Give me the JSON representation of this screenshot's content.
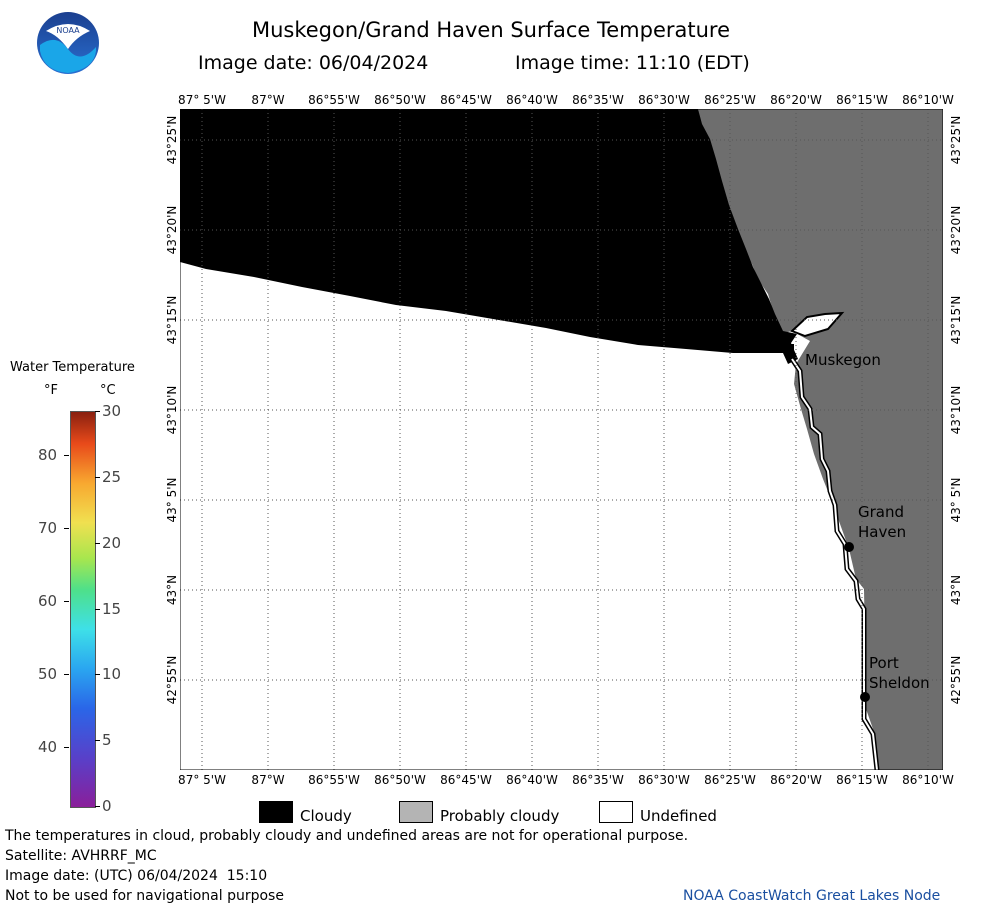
{
  "header": {
    "title": "Muskegon/Grand Haven Surface Temperature",
    "image_date_label": "Image date: 06/04/2024",
    "image_time_label": "Image time: 11:10 (EDT)"
  },
  "logo": {
    "text": "NOAA"
  },
  "map": {
    "lon_ticks": [
      "87° 5'W",
      "87°W",
      "86°55'W",
      "86°50'W",
      "86°45'W",
      "86°40'W",
      "86°35'W",
      "86°30'W",
      "86°25'W",
      "86°20'W",
      "86°15'W",
      "86°10'W"
    ],
    "lat_ticks": [
      "43°25'N",
      "43°20'N",
      "43°15'N",
      "43°10'N",
      "43° 5'N",
      "43°N",
      "42°55'N"
    ],
    "cities": [
      {
        "name": "Muskegon",
        "lines": [
          "Muskegon"
        ]
      },
      {
        "name": "Grand Haven",
        "lines": [
          "Grand",
          "Haven"
        ]
      },
      {
        "name": "Port Sheldon",
        "lines": [
          "Port",
          "Sheldon"
        ]
      }
    ],
    "colors": {
      "cloudy": "#000000",
      "probably_cloudy": "#6e6e6e",
      "undefined": "#ffffff",
      "grid": "#555555"
    }
  },
  "colorbar": {
    "title": "Water Temperature",
    "unit_f": "°F",
    "unit_c": "°C",
    "f_ticks": [
      "80",
      "70",
      "60",
      "50",
      "40"
    ],
    "c_ticks": [
      "30",
      "25",
      "20",
      "15",
      "10",
      "5",
      "0"
    ],
    "f_range": [
      32,
      86
    ],
    "c_range": [
      0,
      30
    ]
  },
  "key": {
    "cloudy": "Cloudy",
    "probably_cloudy": "Probably cloudy",
    "undefined": "Undefined"
  },
  "footer": {
    "note": "The temperatures in cloud, probably cloudy and undefined areas are not for operational purpose.",
    "satellite": "Satellite: AVHRRF_MC",
    "utc_date": "Image date: (UTC) 06/04/2024  15:10",
    "navigation": "Not to be used for navigational purpose",
    "credit": "NOAA CoastWatch Great Lakes Node"
  }
}
